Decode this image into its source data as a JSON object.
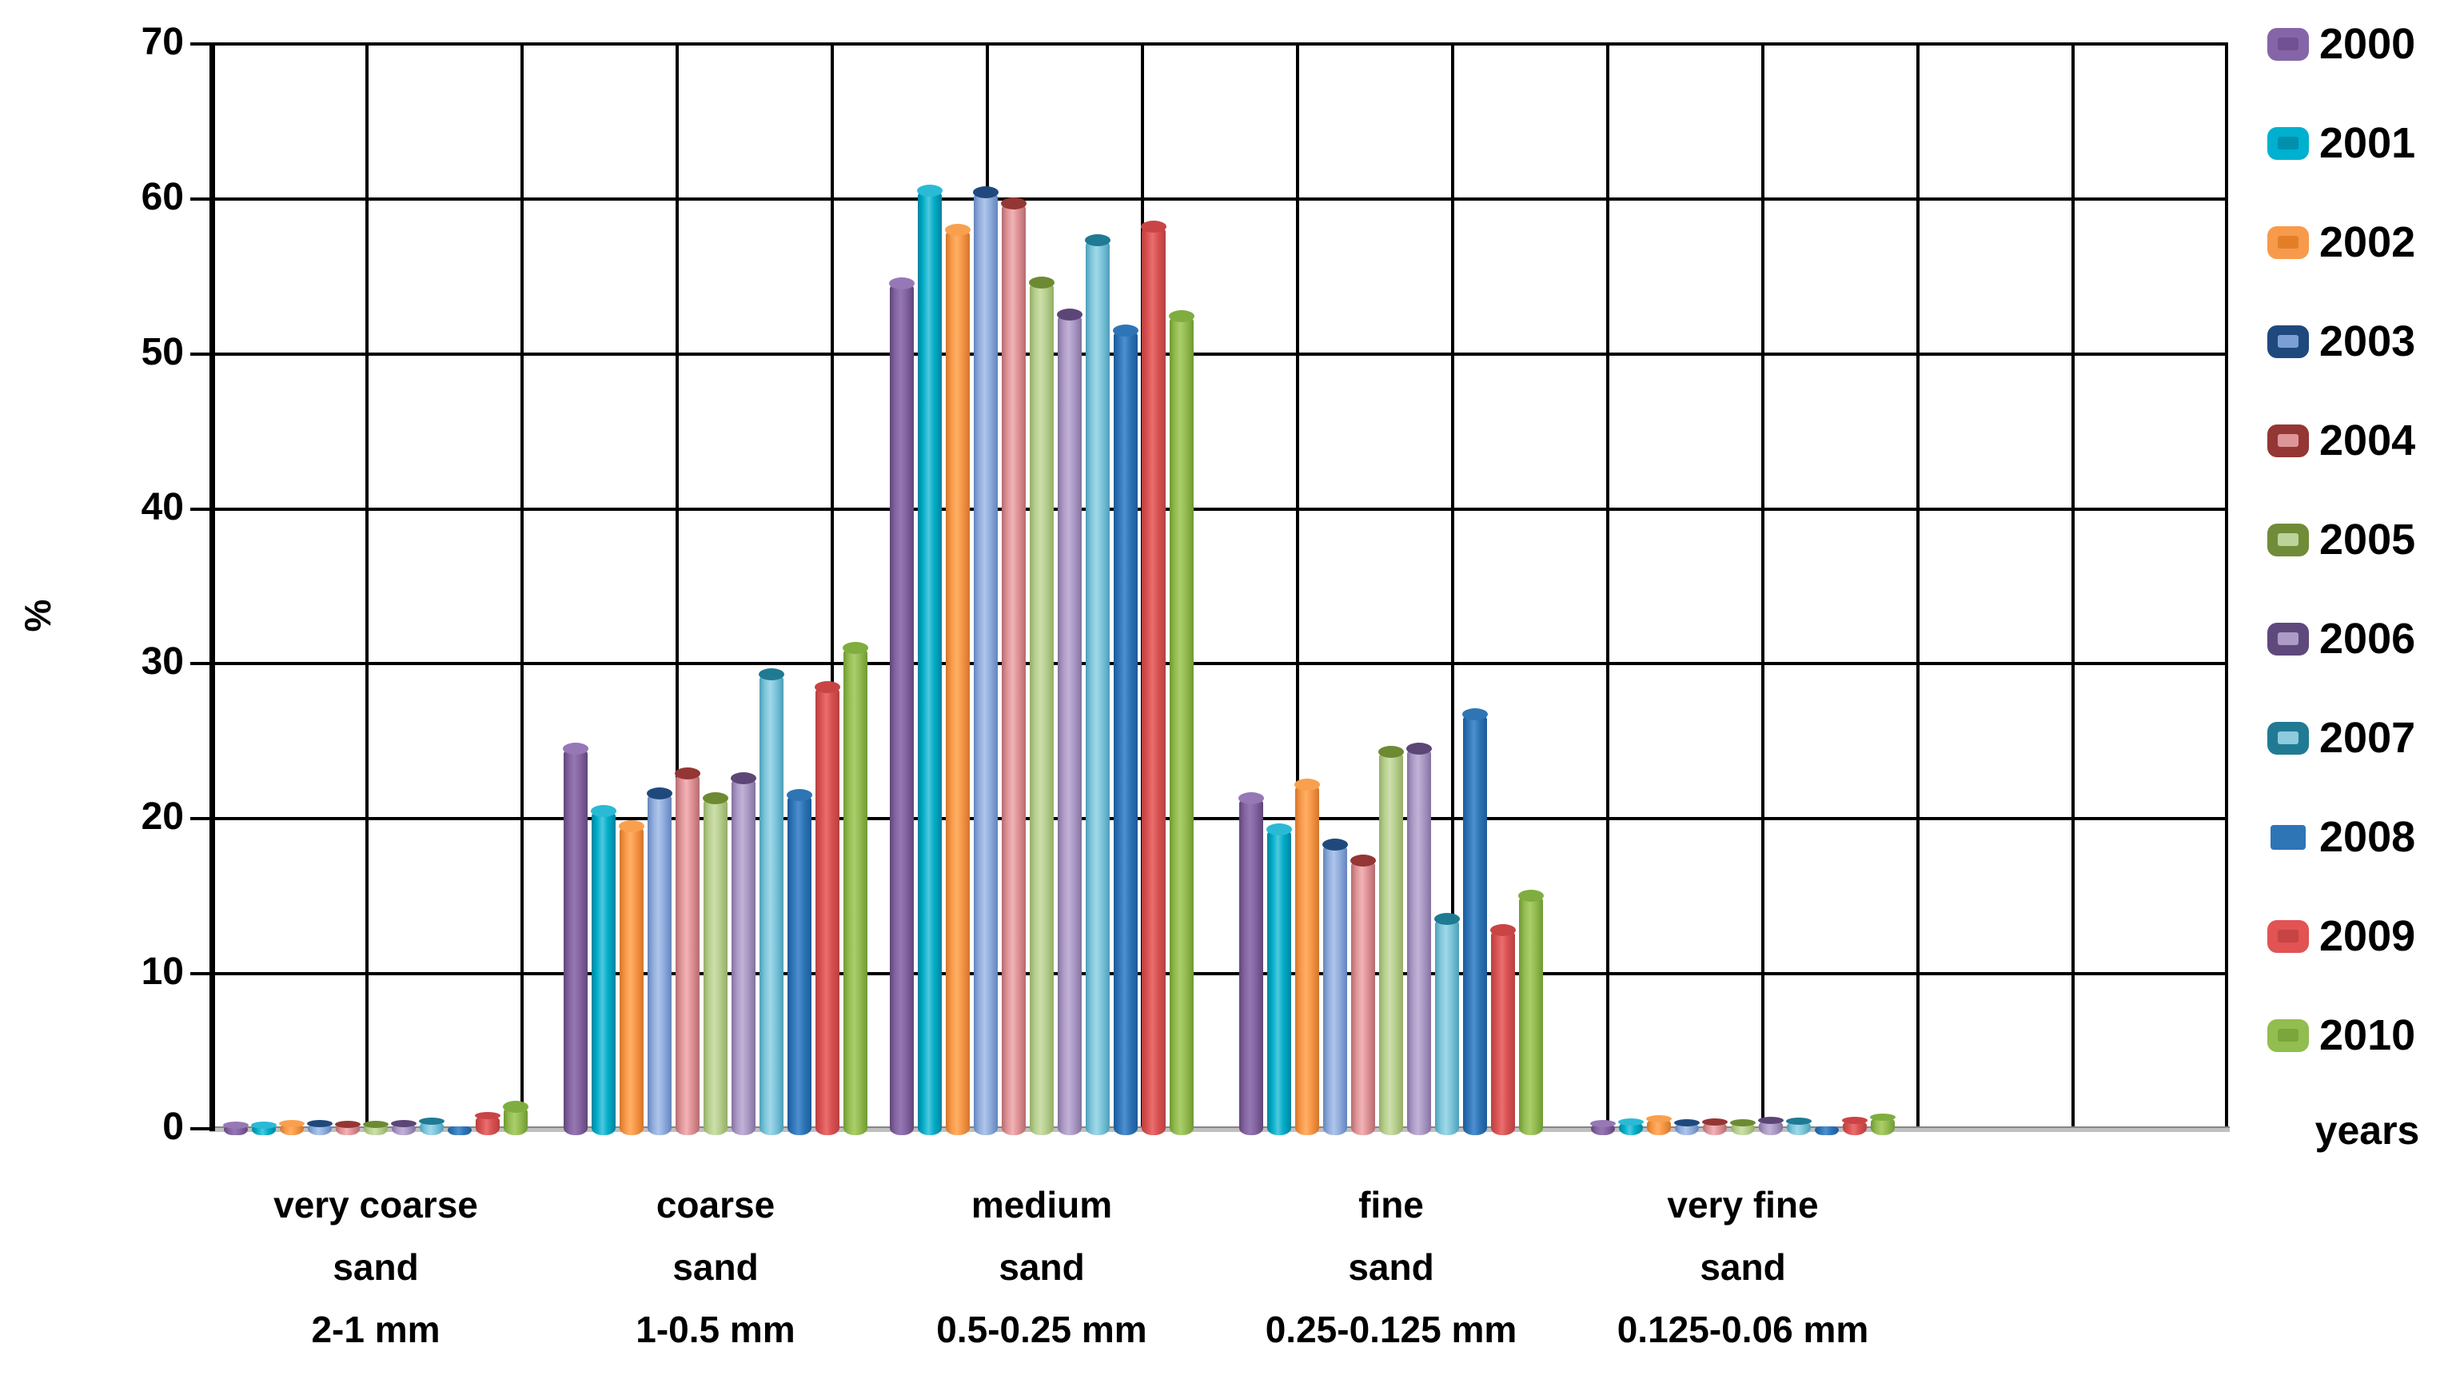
{
  "y_axis": {
    "title": "%",
    "tick_labels": [
      "70",
      "60",
      "50",
      "40",
      "30",
      "20",
      "10",
      "0"
    ]
  },
  "chart_data": {
    "type": "bar",
    "title": "",
    "xlabel": "",
    "ylabel": "%",
    "ylim": [
      0,
      70
    ],
    "ytick_step": 10,
    "grid": true,
    "legend_position": "right",
    "legend_title": "years",
    "categories": [
      "very coarse sand 2-1 mm",
      "coarse sand 1-0.5 mm",
      "medium sand 0.5-0.25 mm",
      "fine sand 0.25-0.125 mm",
      "very fine sand 0.125-0.06 mm"
    ],
    "category_label_lines": [
      [
        "very coarse",
        "sand",
        "2-1 mm"
      ],
      [
        "coarse",
        "sand",
        "1-0.5 mm"
      ],
      [
        "medium",
        "sand",
        "0.5-0.25 mm"
      ],
      [
        "fine",
        "sand",
        "0.25-0.125 mm"
      ],
      [
        "very fine",
        "sand",
        "0.125-0.06 mm"
      ]
    ],
    "series": [
      {
        "name": "2000",
        "values": [
          0.2,
          24.5,
          54.5,
          21.3,
          0.3
        ],
        "cap": "#9678B6",
        "edge": "#5F4677",
        "mid": "#8463A2",
        "light": "#9578B2",
        "swatch_bg": "#8565A8",
        "swatch_inner": "#715093"
      },
      {
        "name": "2001",
        "values": [
          0.2,
          20.5,
          60.5,
          19.3,
          0.4
        ],
        "cap": "#2ABAD6",
        "edge": "#00839F",
        "mid": "#00AEC8",
        "light": "#4FC8DE",
        "swatch_bg": "#00B0CF",
        "swatch_inner": "#0090AE"
      },
      {
        "name": "2002",
        "values": [
          0.3,
          19.5,
          58.0,
          22.2,
          0.6
        ],
        "cap": "#F9A04F",
        "edge": "#D4752A",
        "mid": "#F79646",
        "light": "#FFB066",
        "swatch_bg": "#F89A4B",
        "swatch_inner": "#E37F27"
      },
      {
        "name": "2003",
        "values": [
          0.3,
          21.6,
          60.4,
          18.3,
          0.35
        ],
        "cap": "#1F497D",
        "edge": "#6484BC",
        "mid": "#8FACDC",
        "light": "#AFC6EA",
        "swatch_bg": "#1F497D",
        "swatch_inner": "#7C9FD4"
      },
      {
        "name": "2004",
        "values": [
          0.25,
          22.9,
          59.7,
          17.3,
          0.4
        ],
        "cap": "#943634",
        "edge": "#B56B6F",
        "mid": "#DE9296",
        "light": "#F2B4B7",
        "swatch_bg": "#943634",
        "swatch_inner": "#DE9598"
      },
      {
        "name": "2005",
        "values": [
          0.25,
          21.3,
          54.6,
          24.3,
          0.35
        ],
        "cap": "#6D8A33",
        "edge": "#93AF66",
        "mid": "#B6CE8E",
        "light": "#CDDFAB",
        "swatch_bg": "#708C38",
        "swatch_inner": "#BCD39B"
      },
      {
        "name": "2006",
        "values": [
          0.3,
          22.6,
          52.5,
          24.5,
          0.5
        ],
        "cap": "#5C4677",
        "edge": "#84719F",
        "mid": "#AB99C5",
        "light": "#C1B2D6",
        "swatch_bg": "#5F497C",
        "swatch_inner": "#AC9BC6"
      },
      {
        "name": "2007",
        "values": [
          0.45,
          29.3,
          57.3,
          13.5,
          0.45
        ],
        "cap": "#1F7A93",
        "edge": "#4D9FB8",
        "mid": "#7CC5DB",
        "light": "#A2D8E8",
        "swatch_bg": "#217A93",
        "swatch_inner": "#8ECBDE"
      },
      {
        "name": "2008",
        "values": [
          0.05,
          21.5,
          51.5,
          26.7,
          0.05
        ],
        "cap": "#2E75B6",
        "edge": "#1D5A9A",
        "mid": "#2E75B6",
        "light": "#4E8FD0",
        "swatch_bg": "#2E75B6",
        "swatch_inner": null
      },
      {
        "name": "2009",
        "values": [
          0.8,
          28.5,
          58.2,
          12.8,
          0.5
        ],
        "cap": "#C94444",
        "edge": "#B84040",
        "mid": "#D85151",
        "light": "#EA6E6E",
        "swatch_bg": "#E25353",
        "swatch_inner": "#C64444"
      },
      {
        "name": "2010",
        "values": [
          1.4,
          31.0,
          52.4,
          15.0,
          0.7
        ],
        "cap": "#7FAD3F",
        "edge": "#6F9A33",
        "mid": "#94BB51",
        "light": "#ABCE6B",
        "swatch_bg": "#92BD4F",
        "swatch_inner": "#7BA63C"
      }
    ]
  }
}
